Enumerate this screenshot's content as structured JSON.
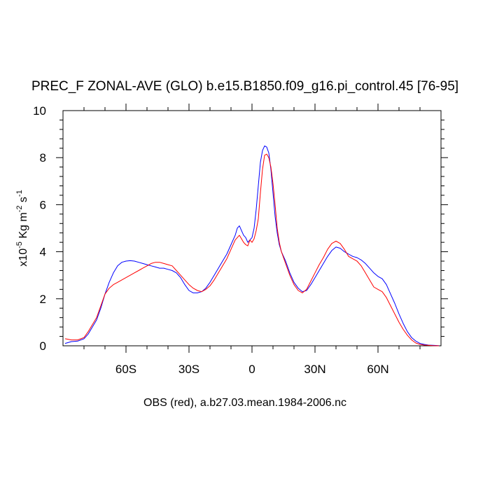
{
  "chart_data": {
    "type": "line",
    "title": "PREC_F ZONAL-AVE (GLO) b.e15.B1850.f09_g16.pi_control.45 [76-95]",
    "xlabel": "OBS (red), a.b27.03.mean.1984-2006.nc",
    "ylabel": {
      "prefix": "x10",
      "exp": "-5",
      "units": " Kg m",
      "units_exp": "-2",
      "units_tail": " s",
      "tail_exp": "-1"
    },
    "xlim": [
      -90,
      90
    ],
    "ylim": [
      0,
      10
    ],
    "x_ticks": [
      {
        "value": -60,
        "label": "60S"
      },
      {
        "value": -30,
        "label": "30S"
      },
      {
        "value": 0,
        "label": "0"
      },
      {
        "value": 30,
        "label": "30N"
      },
      {
        "value": 60,
        "label": "60N"
      }
    ],
    "y_ticks": [
      {
        "value": 0,
        "label": "0"
      },
      {
        "value": 2,
        "label": "2"
      },
      {
        "value": 4,
        "label": "4"
      },
      {
        "value": 6,
        "label": "6"
      },
      {
        "value": 8,
        "label": "8"
      },
      {
        "value": 10,
        "label": "10"
      }
    ],
    "grid": false,
    "series": [
      {
        "color": "#0000ff",
        "x": [
          -89,
          -86,
          -83,
          -80,
          -78,
          -76,
          -74,
          -72,
          -70,
          -68,
          -66,
          -64,
          -62,
          -60,
          -58,
          -56,
          -54,
          -52,
          -50,
          -48,
          -46,
          -44,
          -42,
          -40,
          -38,
          -36,
          -34,
          -32,
          -30,
          -28,
          -26,
          -24,
          -22,
          -20,
          -18,
          -16,
          -14,
          -12,
          -10,
          -8,
          -7,
          -6,
          -5,
          -4,
          -3,
          -2,
          -1,
          0,
          1,
          2,
          3,
          4,
          5,
          6,
          7,
          8,
          9,
          10,
          11,
          12,
          13,
          14,
          16,
          18,
          20,
          22,
          24,
          26,
          28,
          30,
          32,
          34,
          36,
          38,
          40,
          42,
          44,
          46,
          48,
          50,
          52,
          54,
          56,
          58,
          60,
          62,
          64,
          66,
          68,
          70,
          72,
          74,
          76,
          78,
          80,
          82,
          84,
          86,
          89
        ],
        "y": [
          0.1,
          0.18,
          0.2,
          0.3,
          0.5,
          0.8,
          1.1,
          1.6,
          2.2,
          2.7,
          3.1,
          3.4,
          3.55,
          3.6,
          3.62,
          3.6,
          3.55,
          3.5,
          3.45,
          3.4,
          3.35,
          3.3,
          3.3,
          3.25,
          3.2,
          3.1,
          2.9,
          2.6,
          2.35,
          2.25,
          2.25,
          2.3,
          2.45,
          2.7,
          3.0,
          3.3,
          3.6,
          3.9,
          4.3,
          4.7,
          5.0,
          5.1,
          4.9,
          4.7,
          4.6,
          4.4,
          4.5,
          4.6,
          5.0,
          5.8,
          6.8,
          7.8,
          8.3,
          8.5,
          8.45,
          8.2,
          7.5,
          6.5,
          5.5,
          4.8,
          4.3,
          4.0,
          3.6,
          3.1,
          2.7,
          2.45,
          2.3,
          2.35,
          2.6,
          2.9,
          3.2,
          3.5,
          3.8,
          4.05,
          4.2,
          4.15,
          4.0,
          3.9,
          3.8,
          3.75,
          3.65,
          3.5,
          3.3,
          3.1,
          2.95,
          2.85,
          2.6,
          2.2,
          1.8,
          1.35,
          0.95,
          0.6,
          0.35,
          0.2,
          0.1,
          0.06,
          0.03,
          0.02,
          0.01
        ]
      },
      {
        "color": "#ff0000",
        "x": [
          -89,
          -86,
          -83,
          -80,
          -78,
          -76,
          -74,
          -72,
          -70,
          -68,
          -66,
          -64,
          -62,
          -60,
          -58,
          -56,
          -54,
          -52,
          -50,
          -48,
          -46,
          -44,
          -42,
          -40,
          -38,
          -36,
          -34,
          -32,
          -30,
          -28,
          -26,
          -24,
          -22,
          -20,
          -18,
          -16,
          -14,
          -12,
          -10,
          -8,
          -7,
          -6,
          -5,
          -4,
          -3,
          -2,
          -1,
          0,
          1,
          2,
          3,
          4,
          5,
          6,
          7,
          8,
          9,
          10,
          11,
          12,
          13,
          14,
          16,
          18,
          20,
          22,
          24,
          26,
          28,
          30,
          32,
          34,
          36,
          38,
          40,
          42,
          44,
          46,
          48,
          50,
          52,
          54,
          56,
          58,
          60,
          62,
          64,
          66,
          68,
          70,
          72,
          74,
          76,
          78,
          80,
          82,
          84,
          86,
          89
        ],
        "y": [
          0.3,
          0.25,
          0.25,
          0.35,
          0.6,
          0.9,
          1.2,
          1.7,
          2.2,
          2.45,
          2.6,
          2.7,
          2.8,
          2.9,
          3.0,
          3.1,
          3.2,
          3.3,
          3.4,
          3.5,
          3.55,
          3.55,
          3.5,
          3.45,
          3.4,
          3.2,
          3.0,
          2.8,
          2.6,
          2.45,
          2.35,
          2.3,
          2.4,
          2.55,
          2.8,
          3.1,
          3.4,
          3.7,
          4.1,
          4.5,
          4.6,
          4.7,
          4.55,
          4.4,
          4.3,
          4.25,
          4.5,
          4.4,
          4.55,
          4.9,
          5.4,
          6.5,
          7.5,
          8.1,
          8.15,
          8.0,
          7.6,
          6.9,
          6.0,
          5.0,
          4.4,
          4.0,
          3.5,
          3.0,
          2.6,
          2.35,
          2.25,
          2.4,
          2.75,
          3.1,
          3.45,
          3.75,
          4.1,
          4.35,
          4.45,
          4.35,
          4.1,
          3.8,
          3.7,
          3.6,
          3.4,
          3.1,
          2.8,
          2.5,
          2.4,
          2.3,
          2.05,
          1.7,
          1.35,
          1.0,
          0.7,
          0.45,
          0.25,
          0.12,
          0.06,
          0.03,
          0.02,
          0.01,
          0.0
        ]
      }
    ]
  }
}
